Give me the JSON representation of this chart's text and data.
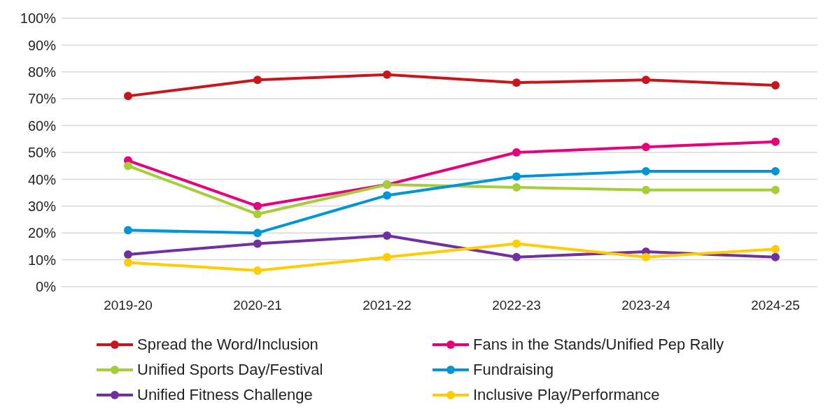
{
  "chart_data": {
    "type": "line",
    "categories": [
      "2019-20",
      "2020-21",
      "2021-22",
      "2022-23",
      "2023-24",
      "2024-25"
    ],
    "series": [
      {
        "name": "Spread the Word/Inclusion",
        "color": "#c8161d",
        "values": [
          71,
          77,
          79,
          76,
          77,
          75
        ]
      },
      {
        "name": "Fans in the Stands/Unified Pep Rally",
        "color": "#e6007e",
        "values": [
          47,
          30,
          38,
          50,
          52,
          54
        ]
      },
      {
        "name": "Unified Sports Day/Festival",
        "color": "#a6ce39",
        "values": [
          45,
          27,
          38,
          37,
          36,
          36
        ]
      },
      {
        "name": "Fundraising",
        "color": "#0096d6",
        "values": [
          21,
          20,
          34,
          41,
          43,
          43
        ]
      },
      {
        "name": "Unified Fitness Challenge",
        "color": "#7030a0",
        "values": [
          12,
          16,
          19,
          11,
          13,
          11
        ]
      },
      {
        "name": "Inclusive Play/Performance",
        "color": "#ffcc00",
        "values": [
          9,
          6,
          11,
          16,
          11,
          14
        ]
      }
    ],
    "ylim": [
      0,
      100
    ],
    "yticks": [
      {
        "value": 0,
        "label": "0%"
      },
      {
        "value": 10,
        "label": "10%"
      },
      {
        "value": 20,
        "label": "20%"
      },
      {
        "value": 30,
        "label": "30%"
      },
      {
        "value": 40,
        "label": "40%"
      },
      {
        "value": 50,
        "label": "50%"
      },
      {
        "value": 60,
        "label": "60%"
      },
      {
        "value": 70,
        "label": "70%"
      },
      {
        "value": 80,
        "label": "80%"
      },
      {
        "value": 90,
        "label": "90%"
      },
      {
        "value": 100,
        "label": "100%"
      }
    ],
    "grid": "y",
    "legend": "bottom",
    "marker": "circle",
    "line_style": "solid"
  }
}
